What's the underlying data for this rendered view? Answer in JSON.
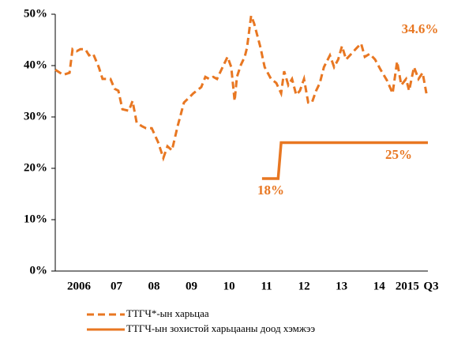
{
  "chart_data": {
    "type": "line",
    "series": [
      {
        "name": "ТТГЧ*-ын харьцаа",
        "color": "#e87722",
        "dash": true,
        "x": [
          2005.87,
          2006.08,
          2006.25,
          2006.33,
          2006.44,
          2006.54,
          2006.67,
          2006.77,
          2006.88,
          2007.03,
          2007.13,
          2007.34,
          2007.45,
          2007.55,
          2007.66,
          2007.83,
          2007.93,
          2008.04,
          2008.18,
          2008.29,
          2008.44,
          2008.61,
          2008.75,
          2008.86,
          2008.98,
          2009.13,
          2009.3,
          2009.55,
          2009.76,
          2009.87,
          2009.97,
          2010.08,
          2010.18,
          2010.33,
          2010.46,
          2010.56,
          2010.65,
          2010.71,
          2010.82,
          2010.92,
          2010.98,
          2011.09,
          2011.17,
          2011.34,
          2011.45,
          2011.62,
          2011.76,
          2011.89,
          2011.97,
          2012.08,
          2012.18,
          2012.29,
          2012.39,
          2012.5,
          2012.61,
          2012.71,
          2012.82,
          2012.92,
          2013.03,
          2013.19,
          2013.3,
          2013.41,
          2013.51,
          2013.62,
          2013.76,
          2013.91,
          2014.02,
          2014.12,
          2014.25,
          2014.39,
          2014.54,
          2014.71,
          2014.86,
          2014.98,
          2015.09,
          2015.22,
          2015.3,
          2015.43,
          2015.55,
          2015.66,
          2015.76
        ],
        "values": [
          39.2,
          38.2,
          38.6,
          43.2,
          42.8,
          43.2,
          43.2,
          42.0,
          42.3,
          39.7,
          37.4,
          37.4,
          35.5,
          35.1,
          31.5,
          31.2,
          33.1,
          28.9,
          28.2,
          27.8,
          27.8,
          25.1,
          22.0,
          24.3,
          23.5,
          28.2,
          32.8,
          34.6,
          35.8,
          37.8,
          37.4,
          37.8,
          37.4,
          39.7,
          41.7,
          39.7,
          33.1,
          37.8,
          40.2,
          41.7,
          43.5,
          49.7,
          48.2,
          43.5,
          39.7,
          37.4,
          36.6,
          34.6,
          38.9,
          36.2,
          37.4,
          34.3,
          35.1,
          37.4,
          32.8,
          32.8,
          35.1,
          36.6,
          39.7,
          42.0,
          39.7,
          41.2,
          43.8,
          41.2,
          42.3,
          43.5,
          44.3,
          41.7,
          42.3,
          41.2,
          39.2,
          37.1,
          34.6,
          40.8,
          36.2,
          37.4,
          35.1,
          39.7,
          37.4,
          38.6,
          34.6
        ]
      },
      {
        "name": "ТТГЧ-ын зохистой харьцааны доод хэмжээ",
        "color": "#e87722",
        "dash": false,
        "x": [
          2011.38,
          2011.81,
          2011.89,
          2015.8
        ],
        "values": [
          18,
          18,
          25,
          25
        ]
      }
    ],
    "annotations": [
      "34.6%",
      "25%",
      "18%"
    ],
    "xlim": [
      2005.87,
      2015.8
    ],
    "xticks": [
      {
        "value": 2006.5,
        "label": "2006"
      },
      {
        "value": 2007.5,
        "label": "07"
      },
      {
        "value": 2008.5,
        "label": "08"
      },
      {
        "value": 2009.5,
        "label": "09"
      },
      {
        "value": 2010.5,
        "label": "10"
      },
      {
        "value": 2011.5,
        "label": "11"
      },
      {
        "value": 2012.5,
        "label": "12"
      },
      {
        "value": 2013.5,
        "label": "13"
      },
      {
        "value": 2014.5,
        "label": "14"
      },
      {
        "value": 2015.25,
        "label": "2015"
      },
      {
        "value": 2015.8,
        "label": "Q3"
      }
    ],
    "ylim": [
      0,
      50
    ],
    "yticks": [
      {
        "value": 0,
        "label": "0%"
      },
      {
        "value": 10,
        "label": "10%"
      },
      {
        "value": 20,
        "label": "20%"
      },
      {
        "value": 30,
        "label": "30%"
      },
      {
        "value": 40,
        "label": "40%"
      },
      {
        "value": 50,
        "label": "50%"
      }
    ],
    "grid": false
  }
}
